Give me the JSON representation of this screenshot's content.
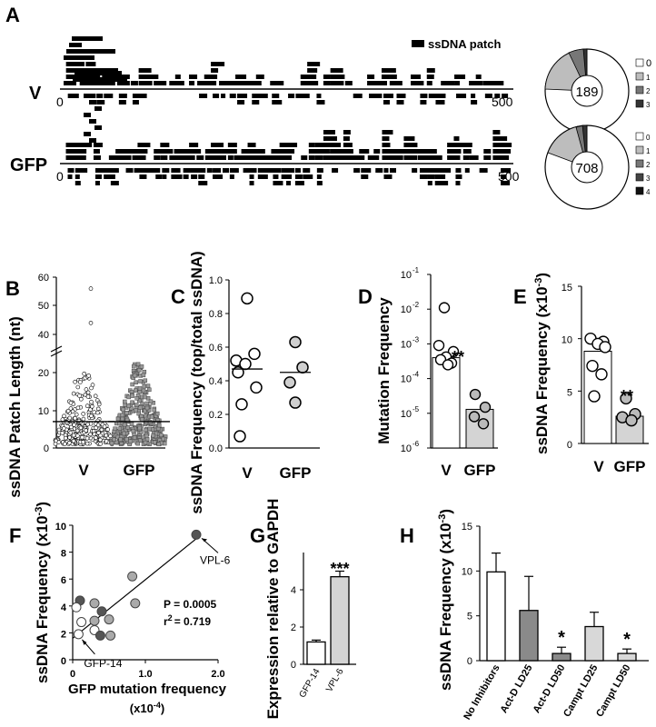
{
  "panels": {
    "A": "A",
    "B": "B",
    "C": "C",
    "D": "D",
    "E": "E",
    "F": "F",
    "G": "G",
    "H": "H"
  },
  "panel_a": {
    "legend": "ssDNA patch",
    "track_v": {
      "label": "V",
      "start": "0",
      "end": "500",
      "pie_center": "189",
      "pie_legend": [
        "0",
        "1",
        "2",
        "3"
      ]
    },
    "track_gfp": {
      "label": "GFP",
      "start": "0",
      "end": "500",
      "pie_center": "708",
      "pie_legend": [
        "0",
        "1",
        "2",
        "3",
        "4"
      ]
    }
  },
  "chart_data": [
    {
      "panel": "B",
      "type": "scatter",
      "ylabel": "ssDNA Patch Length (nt)",
      "categories": [
        "V",
        "GFP"
      ],
      "yticks_lower": [
        "0",
        "10",
        "20"
      ],
      "yticks_upper": [
        "40",
        "50",
        "60"
      ],
      "medians": [
        7,
        7
      ],
      "outliers_V": [
        56,
        44
      ]
    },
    {
      "panel": "C",
      "type": "scatter",
      "ylabel": "ssDNA Frequency (top/total ssDNA)",
      "categories": [
        "V",
        "GFP"
      ],
      "yticks": [
        "0.0",
        "0.2",
        "0.4",
        "0.6",
        "0.8",
        "1.0"
      ],
      "ylim": [
        0,
        1.0
      ],
      "series": [
        {
          "values": [
            0.89,
            0.56,
            0.52,
            0.5,
            0.45,
            0.36,
            0.26,
            0.07
          ],
          "mean": 0.47
        },
        {
          "values": [
            0.63,
            0.48,
            0.39,
            0.27
          ],
          "mean": 0.45
        }
      ]
    },
    {
      "panel": "D",
      "type": "bar",
      "ylabel": "Mutation Frequency",
      "categories": [
        "V",
        "GFP"
      ],
      "yticks": [
        "10",
        "10",
        "10",
        "10",
        "10",
        "10"
      ],
      "ytick_exps": [
        "-6",
        "-5",
        "-4",
        "-3",
        "-2",
        "-1"
      ],
      "log_scale": true,
      "ylim": [
        1e-06,
        0.1
      ],
      "values": [
        0.0004,
        1.3e-05
      ],
      "points": [
        [
          0.011,
          0.0009,
          0.0006,
          0.00042,
          0.00035,
          0.00028,
          0.00025
        ],
        [
          3.5e-05,
          1.5e-05,
          8e-06,
          5e-06
        ]
      ],
      "annotations": [
        "**"
      ]
    },
    {
      "panel": "E",
      "type": "bar",
      "ylabel": "ssDNA Frequency (x10",
      "ylabel_exp": "-3",
      "ylabel_end": ")",
      "categories": [
        "V",
        "GFP"
      ],
      "yticks": [
        "0",
        "5",
        "10",
        "15"
      ],
      "ylim": [
        0,
        15
      ],
      "values": [
        8.8,
        2.6
      ],
      "points": [
        [
          10.0,
          9.7,
          9.5,
          9.2,
          7.4,
          6.6,
          4.5
        ],
        [
          4.3,
          2.8,
          2.5,
          2.2
        ]
      ],
      "annotations": [
        "**"
      ]
    },
    {
      "panel": "F",
      "type": "scatter",
      "xlabel": "GFP mutation frequency",
      "xlabel2": "(x10",
      "xlabel2_exp": "-4",
      "xlabel2_end": ")",
      "ylabel": "ssDNA Frequency (x10",
      "ylabel_exp": "-3",
      "ylabel_end": ")",
      "xticks": [
        "0",
        "1.0",
        "2.0"
      ],
      "yticks": [
        "0",
        "2",
        "4",
        "6",
        "8",
        "10"
      ],
      "xlim": [
        0,
        2.0
      ],
      "ylim": [
        0,
        10
      ],
      "points": [
        {
          "x": 1.7,
          "y": 9.3,
          "shade": "dark"
        },
        {
          "x": 0.82,
          "y": 6.2,
          "shade": "mid"
        },
        {
          "x": 0.86,
          "y": 4.2,
          "shade": "mid"
        },
        {
          "x": 0.3,
          "y": 4.2,
          "shade": "mid"
        },
        {
          "x": 0.1,
          "y": 4.4,
          "shade": "dark"
        },
        {
          "x": 0.05,
          "y": 3.9,
          "shade": "white"
        },
        {
          "x": 0.4,
          "y": 3.6,
          "shade": "dark"
        },
        {
          "x": 0.5,
          "y": 3.0,
          "shade": "mid"
        },
        {
          "x": 0.12,
          "y": 2.8,
          "shade": "white"
        },
        {
          "x": 0.3,
          "y": 2.9,
          "shade": "mid"
        },
        {
          "x": 0.08,
          "y": 1.9,
          "shade": "white"
        },
        {
          "x": 0.3,
          "y": 2.2,
          "shade": "white"
        },
        {
          "x": 0.38,
          "y": 1.8,
          "shade": "dark"
        },
        {
          "x": 0.52,
          "y": 1.8,
          "shade": "mid"
        }
      ],
      "fit": {
        "x": [
          0,
          1.7
        ],
        "y": [
          1.6,
          9.0
        ]
      },
      "annotations": [
        {
          "text": "VPL-6",
          "x": 1.7,
          "y": 9.3
        },
        {
          "text": "GFP-14",
          "x": 0.08,
          "y": 1.9
        }
      ],
      "stats": {
        "p": "P = 0.0005",
        "r2_prefix": "r",
        "r2_sup": "2",
        "r2_value": "= 0.719"
      }
    },
    {
      "panel": "G",
      "type": "bar",
      "ylabel": "Expression relative to GAPDH",
      "categories": [
        "GFP-14",
        "VPL-6"
      ],
      "yticks": [
        "0",
        "2",
        "4"
      ],
      "ylim": [
        0,
        6
      ],
      "values": [
        1.2,
        4.7
      ],
      "errors": [
        0.1,
        0.3
      ],
      "colors": [
        "#ffffff",
        "#d4d4d4"
      ],
      "annotations": [
        "***"
      ]
    },
    {
      "panel": "H",
      "type": "bar",
      "ylabel": "ssDNA Frequency (x10",
      "ylabel_exp": "-3",
      "ylabel_end": ")",
      "categories": [
        "No Inhibitors",
        "Act-D LD25",
        "Act-D LD50",
        "Campt LD25",
        "Campt LD50"
      ],
      "yticks": [
        "0",
        "5",
        "10",
        "15"
      ],
      "ylim": [
        0,
        15
      ],
      "values": [
        9.9,
        5.6,
        0.8,
        3.8,
        0.8
      ],
      "errors": [
        2.1,
        3.8,
        0.7,
        1.6,
        0.5
      ],
      "colors": [
        "#ffffff",
        "#8a8a8a",
        "#8a8a8a",
        "#d8d8d8",
        "#d8d8d8"
      ],
      "annotations": [
        "",
        "",
        "*",
        "",
        "*"
      ]
    }
  ]
}
